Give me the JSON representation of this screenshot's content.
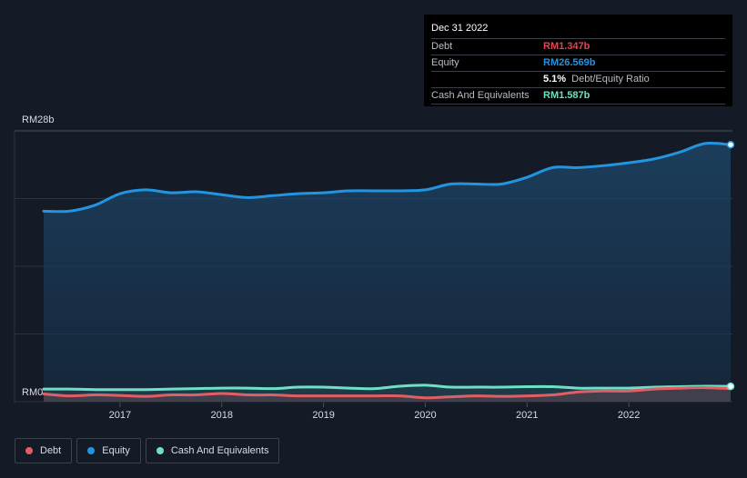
{
  "chart_data": {
    "type": "area",
    "title": "",
    "xlabel": "",
    "ylabel": "",
    "y_axis_top_label": "RM28b",
    "y_axis_bottom_label": "RM0",
    "ylim": [
      0,
      28
    ],
    "xlim": [
      2016.25,
      2023.0
    ],
    "x_ticks": [
      2017,
      2018,
      2019,
      2020,
      2021,
      2022
    ],
    "x_tick_labels": [
      "2017",
      "2018",
      "2019",
      "2020",
      "2021",
      "2022"
    ],
    "grid": true,
    "series": [
      {
        "name": "Equity",
        "color": "#2394df",
        "x": [
          2016.25,
          2016.5,
          2016.75,
          2017.0,
          2017.25,
          2017.5,
          2017.75,
          2018.0,
          2018.25,
          2018.5,
          2018.75,
          2019.0,
          2019.25,
          2019.5,
          2019.75,
          2020.0,
          2020.25,
          2020.5,
          2020.75,
          2021.0,
          2021.25,
          2021.5,
          2021.75,
          2022.0,
          2022.25,
          2022.5,
          2022.75,
          2023.0
        ],
        "values": [
          19.7,
          19.7,
          20.3,
          21.5,
          21.9,
          21.6,
          21.7,
          21.4,
          21.1,
          21.3,
          21.5,
          21.6,
          21.8,
          21.8,
          21.8,
          21.9,
          22.5,
          22.5,
          22.5,
          23.2,
          24.2,
          24.2,
          24.4,
          24.7,
          25.1,
          25.8,
          26.7,
          26.569
        ]
      },
      {
        "name": "Cash And Equivalents",
        "color": "#6ee0c6",
        "x": [
          2016.25,
          2016.5,
          2016.75,
          2017.0,
          2017.25,
          2017.5,
          2017.75,
          2018.0,
          2018.25,
          2018.5,
          2018.75,
          2019.0,
          2019.25,
          2019.5,
          2019.75,
          2020.0,
          2020.25,
          2020.5,
          2020.75,
          2021.0,
          2021.25,
          2021.5,
          2021.75,
          2022.0,
          2022.25,
          2022.5,
          2022.75,
          2023.0
        ],
        "values": [
          1.3,
          1.3,
          1.25,
          1.25,
          1.25,
          1.3,
          1.35,
          1.4,
          1.4,
          1.35,
          1.5,
          1.5,
          1.4,
          1.35,
          1.6,
          1.7,
          1.5,
          1.5,
          1.5,
          1.55,
          1.55,
          1.4,
          1.4,
          1.4,
          1.5,
          1.55,
          1.6,
          1.587
        ]
      },
      {
        "name": "Debt",
        "color": "#e05e66",
        "x": [
          2016.25,
          2016.5,
          2016.75,
          2017.0,
          2017.25,
          2017.5,
          2017.75,
          2018.0,
          2018.25,
          2018.5,
          2018.75,
          2019.0,
          2019.25,
          2019.5,
          2019.75,
          2020.0,
          2020.25,
          2020.5,
          2020.75,
          2021.0,
          2021.25,
          2021.5,
          2021.75,
          2022.0,
          2022.25,
          2022.5,
          2022.75,
          2023.0
        ],
        "values": [
          0.8,
          0.6,
          0.7,
          0.65,
          0.55,
          0.7,
          0.7,
          0.85,
          0.7,
          0.7,
          0.6,
          0.6,
          0.6,
          0.6,
          0.6,
          0.4,
          0.5,
          0.6,
          0.55,
          0.6,
          0.7,
          1.0,
          1.1,
          1.1,
          1.3,
          1.4,
          1.45,
          1.347
        ]
      }
    ]
  },
  "tooltip": {
    "date": "Dec 31 2022",
    "rows": [
      {
        "label": "Debt",
        "value": "RM1.347b",
        "color": "#e0474f"
      },
      {
        "label": "Equity",
        "value": "RM26.569b",
        "color": "#2394df"
      },
      {
        "label": "",
        "value": "5.1%",
        "suffix": "Debt/Equity Ratio",
        "color": "#ffffff"
      },
      {
        "label": "Cash And Equivalents",
        "value": "RM1.587b",
        "color": "#6ee0c6"
      }
    ]
  },
  "legend": {
    "items": [
      {
        "label": "Debt",
        "color": "#e05e66"
      },
      {
        "label": "Equity",
        "color": "#2394df"
      },
      {
        "label": "Cash And Equivalents",
        "color": "#6ee0c6"
      }
    ]
  }
}
